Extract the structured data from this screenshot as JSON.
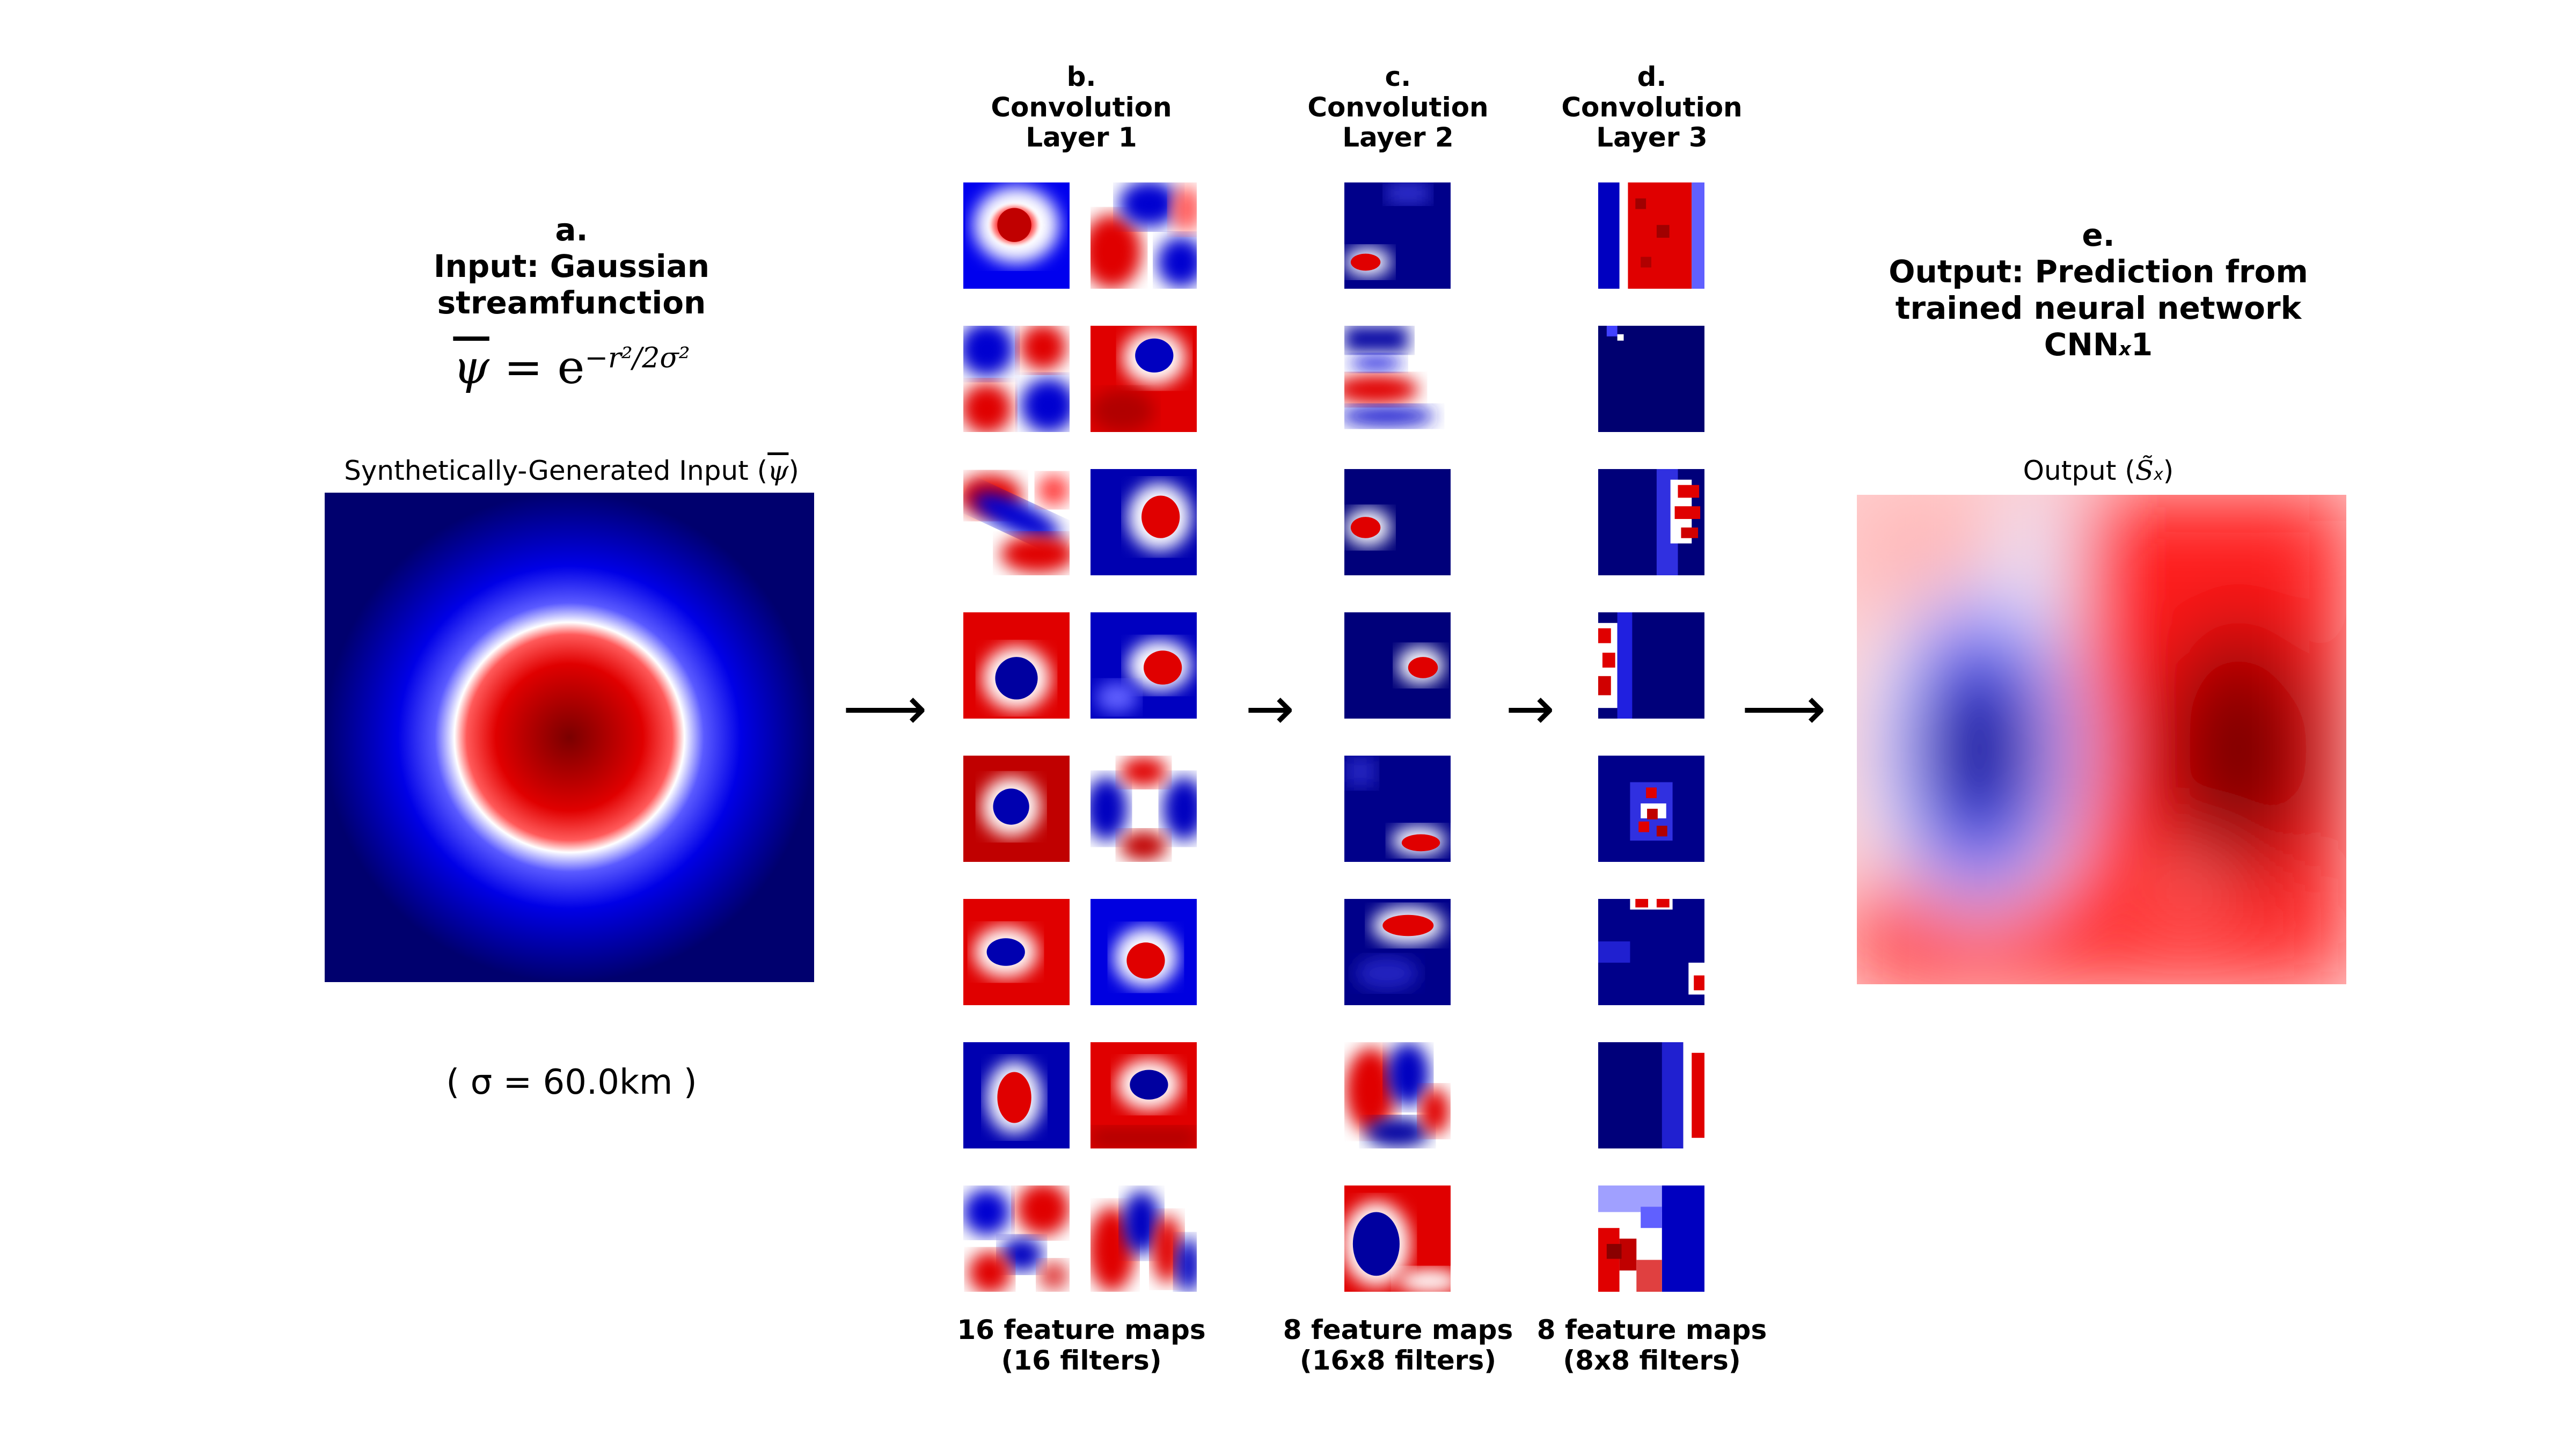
{
  "panel_a": {
    "letter": "a.",
    "title_line1": "Input: Gaussian",
    "title_line2": "streamfunction",
    "formula_lhs": "ψ",
    "formula_eq": " = e",
    "formula_exp": "−r²/2σ²",
    "image_caption_prefix": "Synthetically-Generated Input (",
    "image_caption_symbol": "ψ",
    "image_caption_suffix": ")",
    "sigma_text": "( σ = 60.0km )"
  },
  "panel_b": {
    "letter": "b.",
    "title_line1": "Convolution",
    "title_line2": "Layer 1",
    "footer_line1": "16 feature maps",
    "footer_line2": "(16 filters)"
  },
  "panel_c": {
    "letter": "c.",
    "title_line1": "Convolution",
    "title_line2": "Layer 2",
    "footer_line1": "8 feature maps",
    "footer_line2": "(16x8 filters)"
  },
  "panel_d": {
    "letter": "d.",
    "title_line1": "Convolution",
    "title_line2": "Layer 3",
    "footer_line1": "8 feature maps",
    "footer_line2": "(8x8 filters)"
  },
  "panel_e": {
    "letter": "e.",
    "title_line1": "Output: Prediction from",
    "title_line2": "trained neural network",
    "title_line3_main": "CNN",
    "title_line3_sub": "x",
    "title_line3_end": "1",
    "image_caption_prefix": "Output (",
    "image_caption_symbol": "S̃",
    "image_caption_sub": "x",
    "image_caption_suffix": ")"
  },
  "arrows": [
    "⟶",
    "→",
    "→",
    "⟶"
  ],
  "colors": {
    "deep_blue": "#00006e",
    "blue": "#0000ff",
    "white": "#ffffff",
    "red": "#ff0000",
    "dark_red": "#8b0000"
  }
}
